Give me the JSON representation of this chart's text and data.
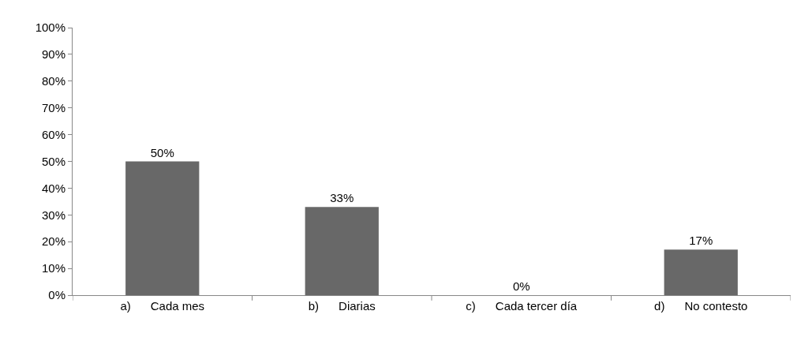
{
  "chart_data": {
    "type": "bar",
    "categories": [
      "a)      Cada mes",
      "b)      Diarias",
      "c)      Cada tercer día",
      "d)      No contesto"
    ],
    "values": [
      50,
      33,
      0,
      17
    ],
    "value_labels": [
      "50%",
      "33%",
      "0%",
      "17%"
    ],
    "color": "#686868",
    "ylim": [
      0,
      100
    ],
    "yticks": [
      {
        "value": 0,
        "label": "0%"
      },
      {
        "value": 10,
        "label": "10%"
      },
      {
        "value": 20,
        "label": "20%"
      },
      {
        "value": 30,
        "label": "30%"
      },
      {
        "value": 40,
        "label": "40%"
      },
      {
        "value": 50,
        "label": "50%"
      },
      {
        "value": 60,
        "label": "60%"
      },
      {
        "value": 70,
        "label": "70%"
      },
      {
        "value": 80,
        "label": "80%"
      },
      {
        "value": 90,
        "label": "90%"
      },
      {
        "value": 100,
        "label": "100%"
      }
    ],
    "grid": false,
    "legend": false
  }
}
